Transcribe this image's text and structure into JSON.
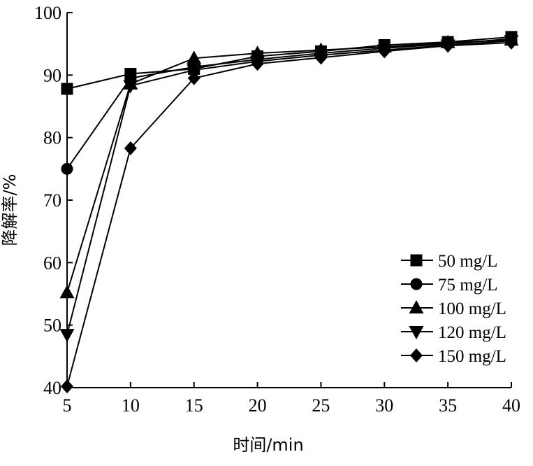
{
  "chart_data": {
    "type": "line",
    "title": "",
    "xlabel": "时间/min",
    "ylabel": "降解率/%",
    "xlim": [
      5,
      40
    ],
    "ylim": [
      40,
      100
    ],
    "x_ticks": [
      "5",
      "10",
      "15",
      "20",
      "25",
      "30",
      "35",
      "40"
    ],
    "y_ticks": [
      "40",
      "50",
      "60",
      "70",
      "80",
      "90",
      "100"
    ],
    "grid": false,
    "legend_position": "bottom-right",
    "x": [
      5,
      10,
      15,
      20,
      25,
      30,
      35,
      40
    ],
    "series": [
      {
        "name": "50 mg/L",
        "marker": "square",
        "values": [
          87.8,
          90.2,
          91.0,
          93.0,
          93.8,
          94.8,
          95.3,
          96.1
        ]
      },
      {
        "name": "75 mg/L",
        "marker": "circle",
        "values": [
          75.0,
          89.5,
          91.3,
          92.5,
          93.5,
          94.3,
          95.0,
          95.8
        ]
      },
      {
        "name": "100 mg/L",
        "marker": "triangle-up",
        "values": [
          55.2,
          88.6,
          92.7,
          93.5,
          94.0,
          94.5,
          95.2,
          95.6
        ]
      },
      {
        "name": "120 mg/L",
        "marker": "triangle-down",
        "values": [
          48.5,
          88.3,
          90.8,
          92.2,
          93.2,
          94.0,
          94.8,
          95.5
        ]
      },
      {
        "name": "150 mg/L",
        "marker": "diamond",
        "values": [
          40.2,
          78.3,
          89.5,
          91.8,
          92.8,
          93.8,
          94.7,
          95.2
        ]
      }
    ]
  }
}
